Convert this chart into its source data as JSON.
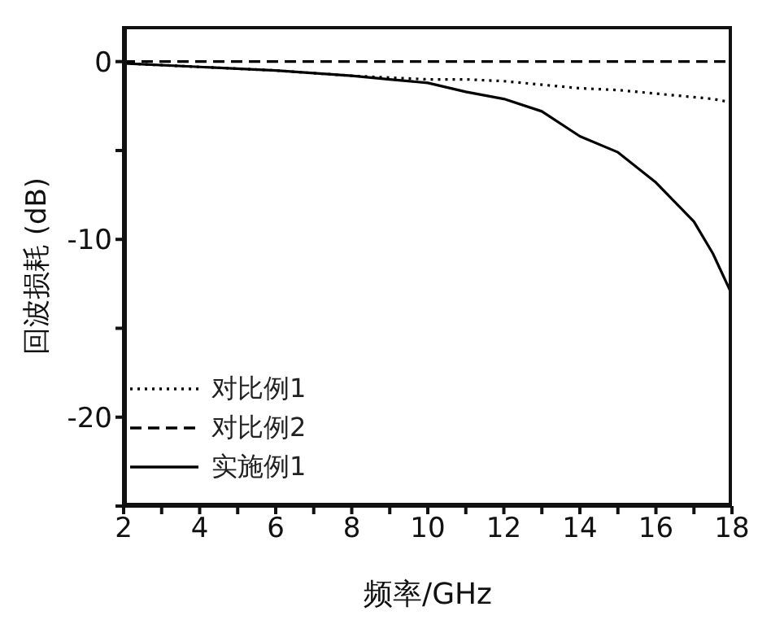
{
  "chart_data": {
    "type": "line",
    "xlabel": "频率/GHz",
    "ylabel": "回波损耗 (dB)",
    "xlim": [
      2,
      18
    ],
    "xticks": [
      2,
      {
        "value": 3,
        "label": null
      },
      4,
      {
        "value": 5,
        "label": null
      },
      6,
      {
        "value": 7,
        "label": null
      },
      8,
      {
        "value": 9,
        "label": null
      },
      10,
      {
        "value": 11,
        "label": null
      },
      12,
      {
        "value": 13,
        "label": null
      },
      14,
      {
        "value": 15,
        "label": null
      },
      16,
      {
        "value": 17,
        "label": null
      },
      18
    ],
    "ylim": [
      -25,
      2
    ],
    "yticks": [
      {
        "value": -25,
        "label": null
      },
      -20,
      {
        "value": -15,
        "label": null
      },
      -10,
      {
        "value": -5,
        "label": null
      },
      0
    ],
    "grid": false,
    "legend": "bottom left",
    "marker": "none",
    "x": [
      2,
      4,
      6,
      8,
      9,
      10,
      11,
      12,
      13,
      14,
      15,
      16,
      16.5,
      17,
      17.5,
      18
    ],
    "series": [
      {
        "name": "对比例1",
        "color": "#000000",
        "line_style": "dotted",
        "values": [
          -0.1,
          -0.3,
          -0.5,
          -0.8,
          -0.9,
          -1.0,
          -1.0,
          -1.1,
          -1.3,
          -1.5,
          -1.6,
          -1.8,
          -1.9,
          -2.0,
          -2.1,
          -2.3
        ]
      },
      {
        "name": "对比例2",
        "color": "#000000",
        "line_style": "dashed",
        "values": [
          0,
          0,
          0,
          0,
          0,
          0,
          0,
          0,
          0,
          0,
          0,
          0,
          0,
          0,
          0,
          0
        ]
      },
      {
        "name": "实施例1",
        "color": "#000000",
        "line_style": "solid",
        "values": [
          -0.1,
          -0.3,
          -0.5,
          -0.8,
          -1.0,
          -1.2,
          -1.7,
          -2.1,
          -2.8,
          -4.2,
          -5.1,
          -6.8,
          -7.9,
          -9.0,
          -10.8,
          -13.1
        ]
      }
    ]
  }
}
